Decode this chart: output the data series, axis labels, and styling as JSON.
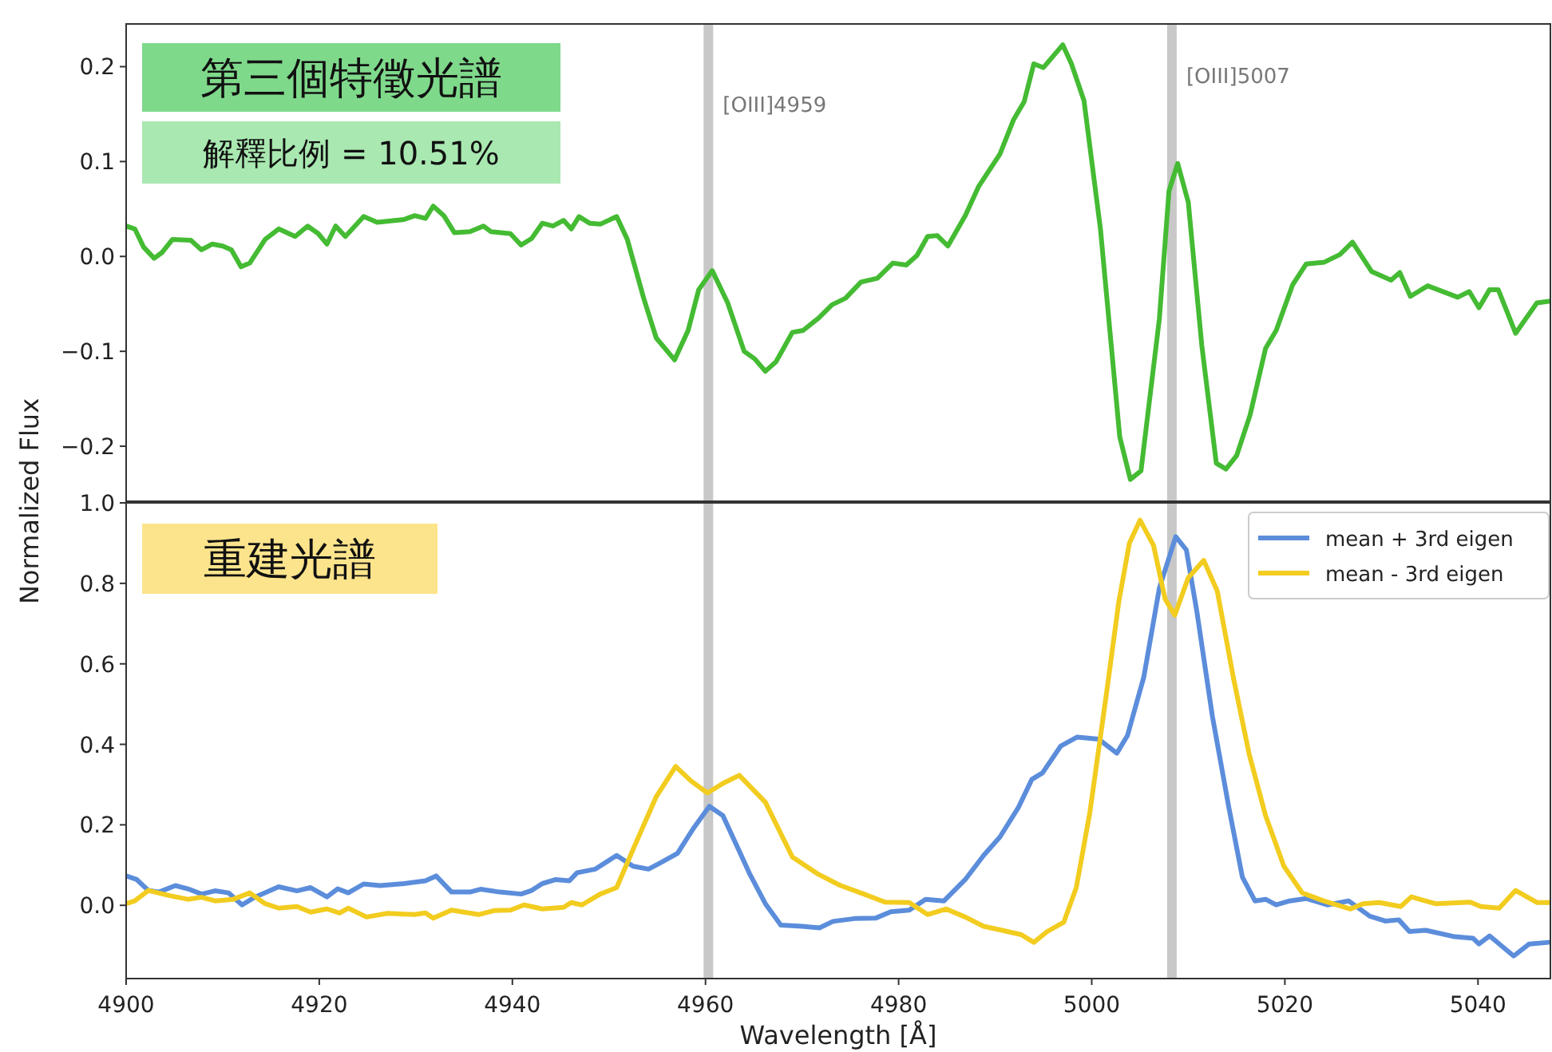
{
  "chart_data": [
    {
      "type": "line",
      "title": "第三個特徵光譜",
      "subtitle": "解釋比例 = 10.51%",
      "xlim": [
        4900,
        5047.5
      ],
      "ylim": [
        -0.258,
        0.245
      ],
      "tick_labels": "y",
      "yticks": [
        {
          "value": -0.2,
          "label": "−0.2"
        },
        {
          "value": -0.1,
          "label": "−0.1"
        },
        {
          "value": 0,
          "label": "0.0"
        },
        {
          "value": 0.1,
          "label": "0.1"
        },
        {
          "value": 0.2,
          "label": "0.2"
        }
      ],
      "ref_lines": [
        {
          "axis": "x",
          "value": 4960.3,
          "label": "[OIII]4959",
          "color": "#c8c8c8"
        },
        {
          "axis": "x",
          "value": 5008.3,
          "label": "[OIII]5007",
          "color": "#c8c8c8"
        }
      ],
      "series": [
        {
          "color": "#44bb33",
          "x": [
            4900,
            4900.9,
            4901.8,
            4902.9,
            4903.7,
            4904.8,
            4906.7,
            4907.8,
            4908.9,
            4910,
            4910.9,
            4911.9,
            4912.8,
            4914.4,
            4915.8,
            4917.5,
            4918.8,
            4919.9,
            4920.8,
            4921.7,
            4922.7,
            4924.6,
            4926,
            4928.8,
            4929.9,
            4931,
            4931.8,
            4932.9,
            4934,
            4935.6,
            4937,
            4937.8,
            4939.8,
            4940.9,
            4942,
            4943.1,
            4944.2,
            4945.3,
            4946.1,
            4946.9,
            4948,
            4949.1,
            4950.8,
            4951.9,
            4953.6,
            4954.9,
            4956.8,
            4958.2,
            4959.3,
            4960.7,
            4962.3,
            4964,
            4965.1,
            4966.2,
            4967.3,
            4969,
            4970.1,
            4971.7,
            4973.1,
            4974.5,
            4976.1,
            4977.8,
            4979.4,
            4980.8,
            4981.9,
            4983,
            4984,
            4985.1,
            4986.9,
            4988.3,
            4990.5,
            4991.9,
            4993,
            4994,
            4995,
            4997,
            4997.9,
            4999.2,
            5000.9,
            5002.9,
            5004,
            5005.1,
            5007,
            5008,
            5008.9,
            5010,
            5011.4,
            5012.9,
            5013.9,
            5015,
            5016.4,
            5018,
            5019.1,
            5020.8,
            5022.2,
            5024.1,
            5025.7,
            5027,
            5029,
            5031,
            5031.9,
            5033,
            5034.8,
            5037.9,
            5039.1,
            5040.1,
            5041.2,
            5042.1,
            5043.9,
            5046.1,
            5047.5
          ],
          "values": [
            0.032,
            0.029,
            0.01,
            -0.002,
            0.004,
            0.018,
            0.017,
            0.007,
            0.013,
            0.011,
            0.007,
            -0.011,
            -0.007,
            0.018,
            0.029,
            0.021,
            0.032,
            0.024,
            0.013,
            0.032,
            0.021,
            0.042,
            0.036,
            0.039,
            0.043,
            0.04,
            0.053,
            0.043,
            0.025,
            0.026,
            0.032,
            0.026,
            0.024,
            0.012,
            0.019,
            0.035,
            0.032,
            0.038,
            0.029,
            0.042,
            0.035,
            0.034,
            0.042,
            0.018,
            -0.044,
            -0.086,
            -0.109,
            -0.078,
            -0.035,
            -0.015,
            -0.049,
            -0.1,
            -0.108,
            -0.121,
            -0.111,
            -0.08,
            -0.078,
            -0.065,
            -0.051,
            -0.044,
            -0.027,
            -0.023,
            -0.007,
            -0.009,
            0.001,
            0.021,
            0.022,
            0.011,
            0.043,
            0.074,
            0.108,
            0.144,
            0.163,
            0.203,
            0.199,
            0.223,
            0.203,
            0.164,
            0.029,
            -0.19,
            -0.235,
            -0.226,
            -0.066,
            0.069,
            0.098,
            0.057,
            -0.094,
            -0.218,
            -0.224,
            -0.21,
            -0.167,
            -0.097,
            -0.078,
            -0.03,
            -0.008,
            -0.006,
            0.002,
            0.015,
            -0.016,
            -0.025,
            -0.017,
            -0.042,
            -0.031,
            -0.043,
            -0.037,
            -0.054,
            -0.035,
            -0.035,
            -0.081,
            -0.049,
            -0.047
          ]
        }
      ]
    },
    {
      "type": "line",
      "title": "重建光譜",
      "xlabel": "Wavelength [Å]",
      "ylabel": "Normalized Flux",
      "xlim": [
        4900,
        5047.5
      ],
      "ylim": [
        -0.182,
        1.0
      ],
      "legend": "top right",
      "xticks": [
        4900,
        4920,
        4940,
        4960,
        4980,
        5000,
        5020,
        5040
      ],
      "yticks": [
        {
          "value": 0,
          "label": "0.0"
        },
        {
          "value": 0.2,
          "label": "0.2"
        },
        {
          "value": 0.4,
          "label": "0.4"
        },
        {
          "value": 0.6,
          "label": "0.6"
        },
        {
          "value": 0.8,
          "label": "0.8"
        },
        {
          "value": 1,
          "label": "1.0"
        }
      ],
      "ref_lines": [
        {
          "axis": "x",
          "value": 4960.3,
          "color": "#c8c8c8"
        },
        {
          "axis": "x",
          "value": 5008.3,
          "color": "#c8c8c8"
        }
      ],
      "series": [
        {
          "name": "mean + 3rd eigen",
          "color": "#5b8ddb",
          "x": [
            4900,
            4901.1,
            4902.3,
            4903.4,
            4905.1,
            4906.4,
            4907.8,
            4909.2,
            4910.6,
            4912,
            4913.3,
            4915.8,
            4917.7,
            4919.1,
            4920.8,
            4921.9,
            4923,
            4924.6,
            4926.3,
            4928.8,
            4931,
            4932.1,
            4933.7,
            4935.6,
            4936.7,
            4938.7,
            4940.9,
            4942,
            4943.1,
            4944.5,
            4945.9,
            4946.7,
            4948.6,
            4950.8,
            4952.5,
            4954.1,
            4955.5,
            4957.1,
            4958.8,
            4960.4,
            4961.8,
            4963.2,
            4964.6,
            4966.2,
            4967.8,
            4970,
            4971.8,
            4973.2,
            4975.4,
            4977.6,
            4979.2,
            4981.1,
            4982.8,
            4984.7,
            4986.9,
            4988.8,
            4990.5,
            4992.4,
            4993.8,
            4994.9,
            4996.8,
            4998.5,
            5000.7,
            5002.6,
            5003.7,
            5005.4,
            5007,
            5008.7,
            5009.8,
            5010.9,
            5012.5,
            5014.2,
            5015.6,
            5016.9,
            5018,
            5019.1,
            5020.5,
            5022.2,
            5024.4,
            5026.6,
            5028.8,
            5030.4,
            5031.8,
            5032.9,
            5034.6,
            5037.6,
            5039.5,
            5040.1,
            5041.2,
            5043.7,
            5045.3,
            5047.3
          ],
          "values": [
            0.073,
            0.064,
            0.037,
            0.033,
            0.049,
            0.041,
            0.028,
            0.036,
            0.031,
            0.001,
            0.02,
            0.046,
            0.036,
            0.044,
            0.021,
            0.041,
            0.031,
            0.053,
            0.049,
            0.054,
            0.061,
            0.073,
            0.033,
            0.033,
            0.04,
            0.033,
            0.028,
            0.037,
            0.054,
            0.064,
            0.061,
            0.081,
            0.09,
            0.124,
            0.097,
            0.09,
            0.108,
            0.129,
            0.193,
            0.246,
            0.223,
            0.15,
            0.077,
            0.004,
            -0.049,
            -0.052,
            -0.056,
            -0.04,
            -0.033,
            -0.032,
            -0.016,
            -0.012,
            0.015,
            0.011,
            0.064,
            0.124,
            0.17,
            0.243,
            0.313,
            0.329,
            0.396,
            0.418,
            0.413,
            0.378,
            0.422,
            0.568,
            0.788,
            0.916,
            0.883,
            0.728,
            0.469,
            0.243,
            0.07,
            0.011,
            0.015,
            0.001,
            0.011,
            0.017,
            0.001,
            0.011,
            -0.027,
            -0.039,
            -0.036,
            -0.065,
            -0.062,
            -0.078,
            -0.082,
            -0.096,
            -0.076,
            -0.126,
            -0.096,
            -0.092
          ]
        },
        {
          "name": "mean - 3rd eigen",
          "color": "#f2cc1f",
          "x": [
            4900,
            4900.9,
            4902.3,
            4904.5,
            4906.4,
            4907.8,
            4909.2,
            4911.1,
            4912.8,
            4914.4,
            4915.8,
            4917.7,
            4919.1,
            4920.8,
            4922.1,
            4923,
            4924.9,
            4927.1,
            4929.9,
            4931,
            4931.8,
            4933.7,
            4936.5,
            4938.1,
            4939.8,
            4941.2,
            4943.1,
            4945.3,
            4946.1,
            4947.2,
            4949.1,
            4950.8,
            4952.7,
            4954.9,
            4956.9,
            4958.5,
            4960.2,
            4961.8,
            4963.5,
            4966.2,
            4969,
            4971.7,
            4973.9,
            4976.4,
            4978.6,
            4981.1,
            4983,
            4984.9,
            4986.9,
            4988.8,
            4990.7,
            4992.7,
            4994,
            4995.4,
            4997.1,
            4998.4,
            4999.8,
            5001.5,
            5002.8,
            5003.9,
            5005,
            5006.4,
            5007.6,
            5008.6,
            5010,
            5011.6,
            5013,
            5014.7,
            5016.3,
            5018,
            5019.9,
            5021.8,
            5024,
            5026.8,
            5028.1,
            5029.8,
            5032,
            5033.1,
            5035.6,
            5039.2,
            5040.3,
            5042.2,
            5043.9,
            5046.1,
            5047.5
          ],
          "values": [
            0.004,
            0.011,
            0.037,
            0.024,
            0.015,
            0.02,
            0.011,
            0.015,
            0.031,
            0.004,
            -0.007,
            -0.003,
            -0.017,
            -0.009,
            -0.019,
            -0.007,
            -0.029,
            -0.02,
            -0.023,
            -0.019,
            -0.032,
            -0.012,
            -0.023,
            -0.013,
            -0.012,
            0.001,
            -0.009,
            -0.005,
            0.007,
            0.001,
            0.028,
            0.044,
            0.15,
            0.27,
            0.345,
            0.309,
            0.279,
            0.303,
            0.323,
            0.256,
            0.12,
            0.077,
            0.05,
            0.028,
            0.008,
            0.007,
            -0.023,
            -0.009,
            -0.029,
            -0.052,
            -0.062,
            -0.073,
            -0.092,
            -0.065,
            -0.042,
            0.044,
            0.23,
            0.522,
            0.754,
            0.9,
            0.957,
            0.894,
            0.761,
            0.721,
            0.814,
            0.857,
            0.781,
            0.562,
            0.376,
            0.223,
            0.097,
            0.031,
            0.011,
            -0.009,
            0.004,
            0.007,
            -0.003,
            0.021,
            0.004,
            0.008,
            -0.003,
            -0.007,
            0.037,
            0.007,
            0.007
          ]
        }
      ]
    }
  ]
}
